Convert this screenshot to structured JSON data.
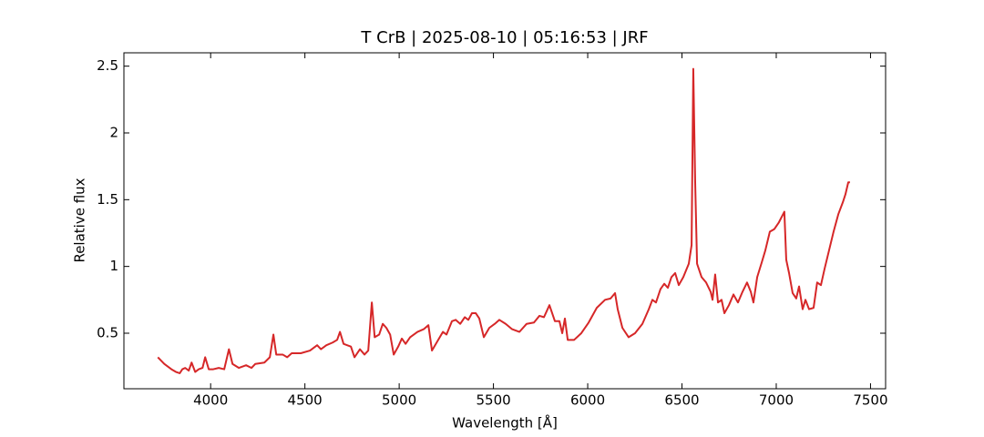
{
  "chart_data": {
    "type": "line",
    "title": "T CrB | 2025-08-10 | 05:16:53 | JRF",
    "x_label": "Wavelength [Å]",
    "y_label": "Relative flux",
    "color": "#d62728",
    "x": [
      3720,
      3754,
      3792,
      3816,
      3836,
      3850,
      3865,
      3884,
      3899,
      3918,
      3937,
      3957,
      3971,
      3990,
      4014,
      4043,
      4072,
      4097,
      4116,
      4150,
      4188,
      4217,
      4237,
      4285,
      4314,
      4333,
      4348,
      4382,
      4406,
      4430,
      4478,
      4527,
      4565,
      4585,
      4614,
      4647,
      4671,
      4686,
      4705,
      4744,
      4763,
      4792,
      4816,
      4836,
      4855,
      4870,
      4894,
      4913,
      4932,
      4952,
      4971,
      4995,
      5014,
      5034,
      5058,
      5097,
      5130,
      5155,
      5174,
      5203,
      5232,
      5251,
      5280,
      5300,
      5324,
      5348,
      5367,
      5386,
      5406,
      5425,
      5449,
      5478,
      5507,
      5531,
      5565,
      5599,
      5638,
      5676,
      5715,
      5744,
      5768,
      5797,
      5826,
      5850,
      5865,
      5879,
      5894,
      5928,
      5966,
      6005,
      6048,
      6092,
      6121,
      6145,
      6159,
      6184,
      6217,
      6251,
      6290,
      6324,
      6343,
      6362,
      6386,
      6406,
      6425,
      6444,
      6464,
      6483,
      6507,
      6536,
      6551,
      6560,
      6570,
      6580,
      6604,
      6628,
      6652,
      6662,
      6676,
      6691,
      6710,
      6725,
      6749,
      6773,
      6797,
      6821,
      6845,
      6865,
      6879,
      6899,
      6923,
      6942,
      6966,
      6990,
      7014,
      7043,
      7053,
      7068,
      7087,
      7106,
      7121,
      7140,
      7155,
      7174,
      7198,
      7217,
      7237,
      7256,
      7280,
      7304,
      7329,
      7353,
      7367,
      7382,
      7391
    ],
    "values": [
      0.32,
      0.27,
      0.23,
      0.21,
      0.2,
      0.23,
      0.24,
      0.22,
      0.28,
      0.21,
      0.23,
      0.24,
      0.32,
      0.23,
      0.23,
      0.24,
      0.23,
      0.38,
      0.27,
      0.24,
      0.26,
      0.24,
      0.27,
      0.28,
      0.32,
      0.49,
      0.34,
      0.34,
      0.32,
      0.35,
      0.35,
      0.37,
      0.41,
      0.38,
      0.41,
      0.43,
      0.45,
      0.51,
      0.42,
      0.4,
      0.32,
      0.38,
      0.34,
      0.37,
      0.73,
      0.47,
      0.49,
      0.57,
      0.54,
      0.49,
      0.34,
      0.4,
      0.46,
      0.42,
      0.47,
      0.51,
      0.53,
      0.56,
      0.37,
      0.44,
      0.51,
      0.49,
      0.59,
      0.6,
      0.57,
      0.62,
      0.6,
      0.65,
      0.65,
      0.61,
      0.47,
      0.54,
      0.57,
      0.6,
      0.57,
      0.53,
      0.51,
      0.57,
      0.58,
      0.63,
      0.62,
      0.71,
      0.59,
      0.59,
      0.5,
      0.61,
      0.45,
      0.45,
      0.5,
      0.58,
      0.69,
      0.75,
      0.76,
      0.8,
      0.68,
      0.54,
      0.47,
      0.5,
      0.57,
      0.68,
      0.75,
      0.73,
      0.83,
      0.87,
      0.84,
      0.92,
      0.95,
      0.86,
      0.92,
      1.02,
      1.16,
      2.48,
      1.63,
      1.02,
      0.92,
      0.88,
      0.81,
      0.75,
      0.94,
      0.73,
      0.75,
      0.65,
      0.71,
      0.79,
      0.73,
      0.81,
      0.88,
      0.81,
      0.73,
      0.92,
      1.03,
      1.12,
      1.26,
      1.28,
      1.33,
      1.41,
      1.05,
      0.95,
      0.8,
      0.76,
      0.85,
      0.68,
      0.75,
      0.68,
      0.69,
      0.88,
      0.86,
      0.98,
      1.12,
      1.26,
      1.39,
      1.48,
      1.54,
      1.63,
      1.63
    ],
    "xlim": [
      3540,
      7580
    ],
    "ylim": [
      0.084,
      2.6
    ],
    "xticks": [
      4000,
      4500,
      5000,
      5500,
      6000,
      6500,
      7000,
      7500
    ],
    "yticks": [
      0.5,
      1.0,
      1.5,
      2.0,
      2.5
    ]
  }
}
